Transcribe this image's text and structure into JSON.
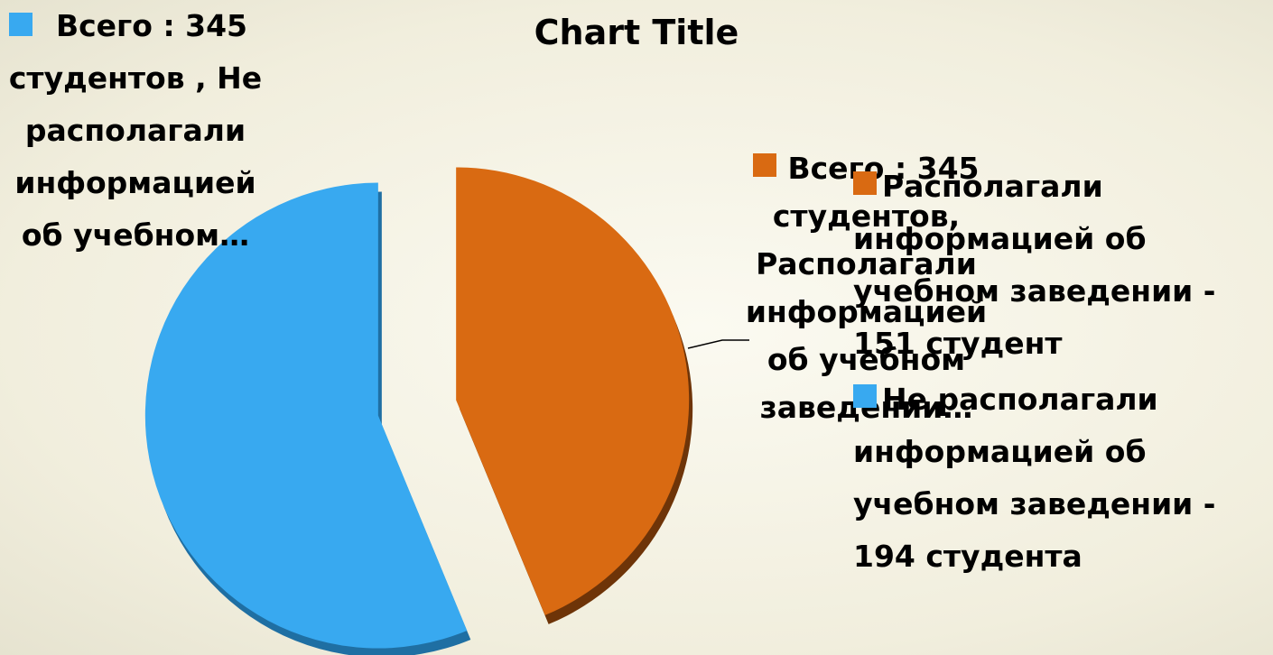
{
  "chart_data": {
    "type": "pie",
    "title": "Chart Title",
    "categories": [
      "Располагали информацией об учебном заведении - 151 студент",
      "Не располагали информацией об учебном заведении - 194 студента"
    ],
    "values": [
      151,
      194
    ],
    "colors": [
      "#d96a12",
      "#38a9f0"
    ],
    "data_labels": [
      "Всего : 345 студентов, Располагали информацией об учебном заведении…",
      "Всего : 345 студентов , Не располагали информацией об учебном…"
    ],
    "legend": "right"
  }
}
